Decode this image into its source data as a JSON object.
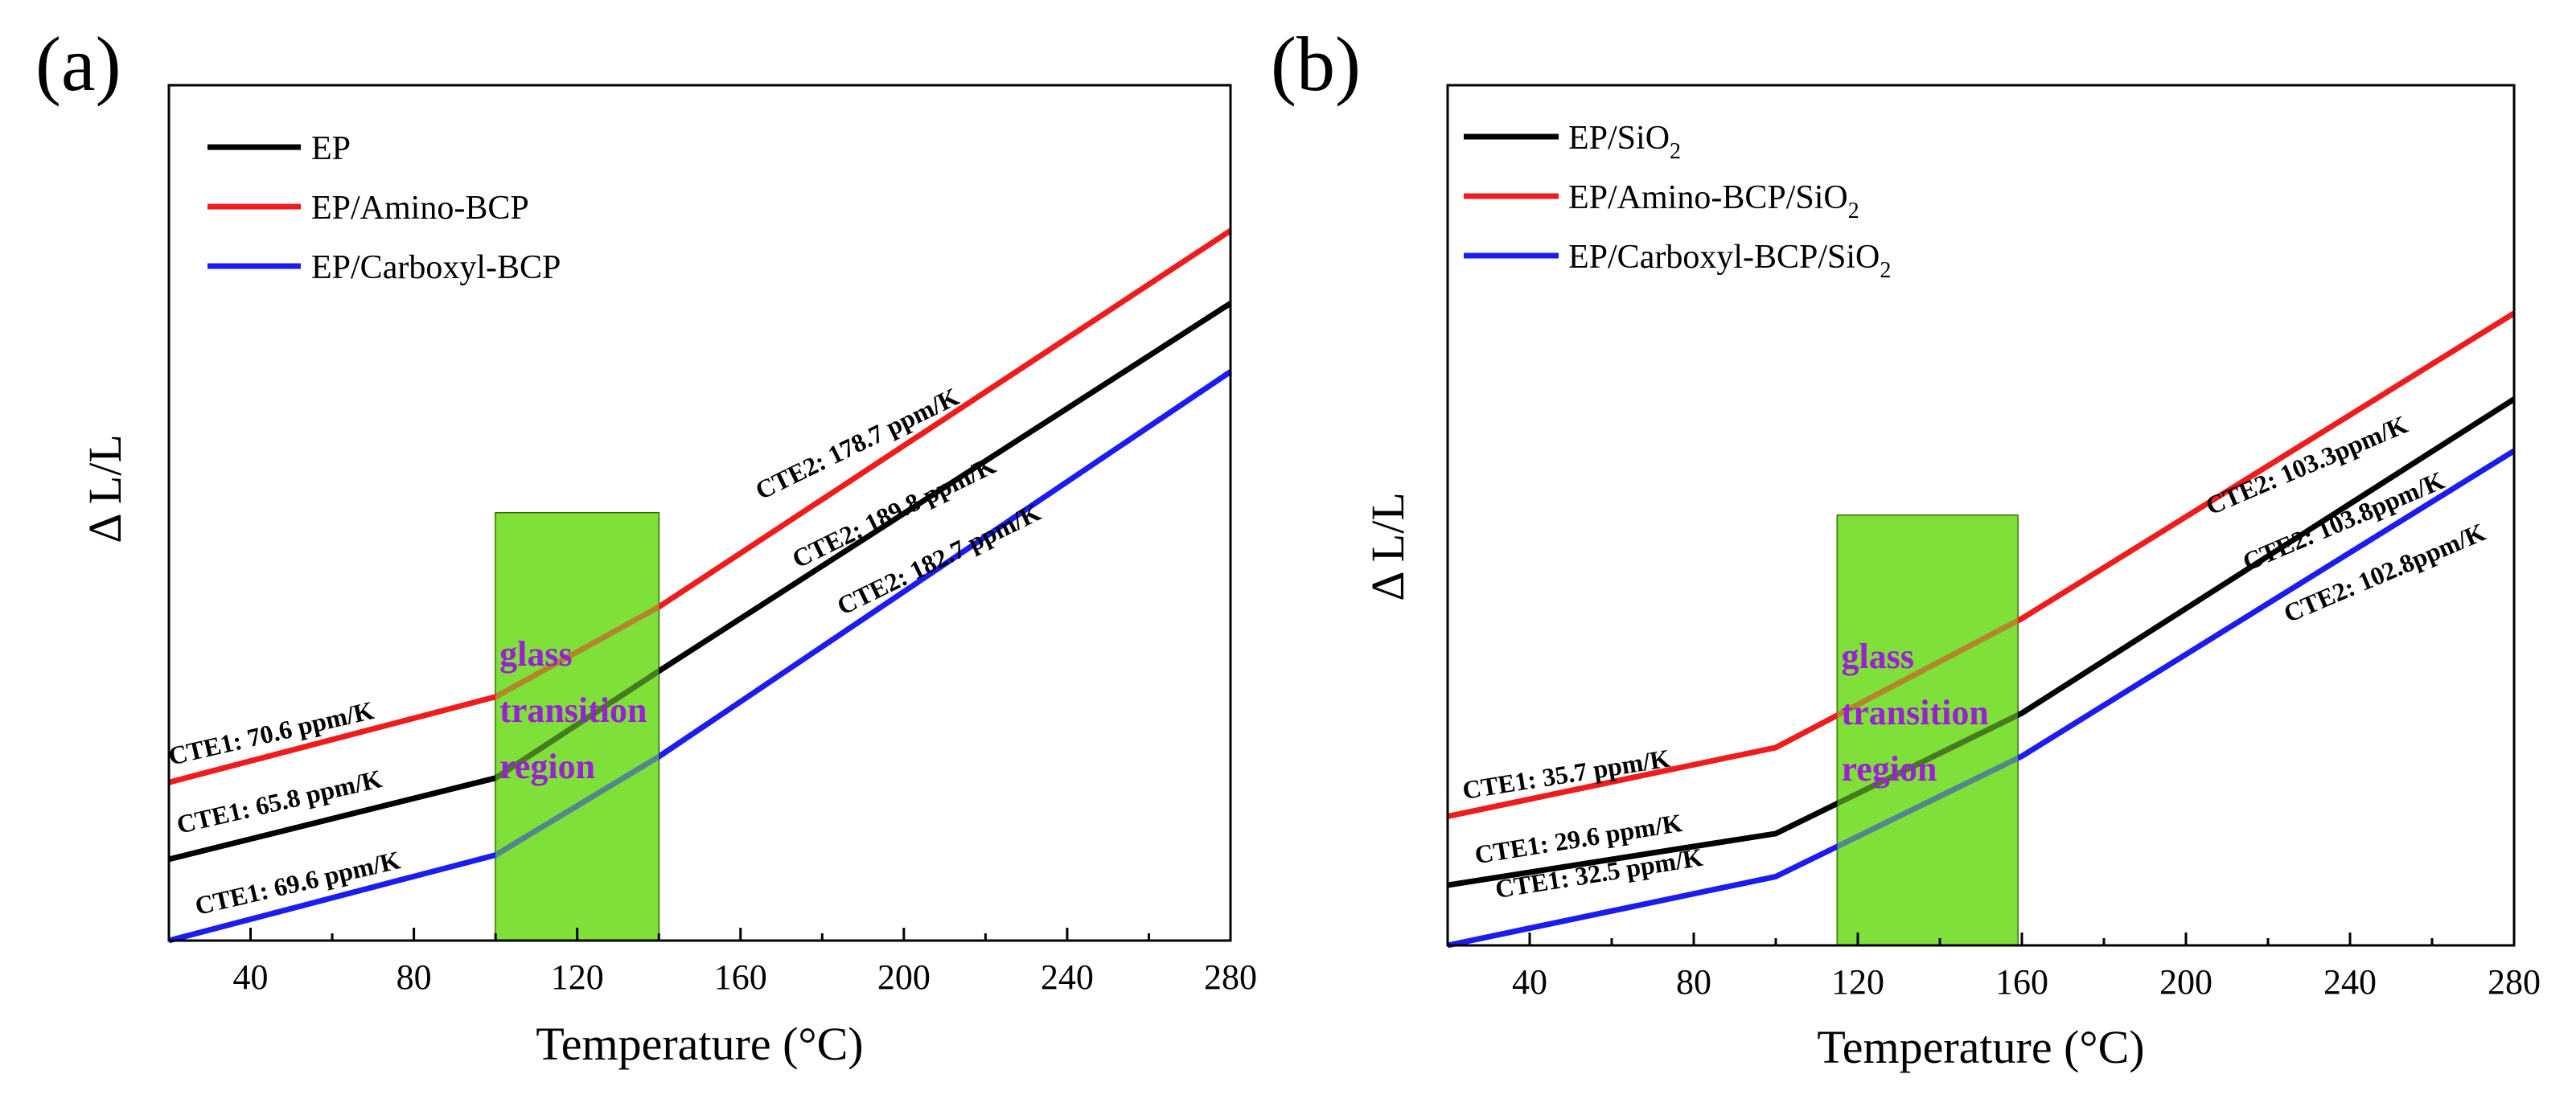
{
  "chart_data": [
    {
      "panel": "(a)",
      "type": "line",
      "xlabel": "Temperature (°C)",
      "ylabel": "Δ L/L",
      "xlim": [
        20,
        280
      ],
      "ylim": [
        0,
        100
      ],
      "xticks": [
        "40",
        "80",
        "120",
        "160",
        "200",
        "240",
        "280"
      ],
      "legend_position": "top-left",
      "region": {
        "x0": 100,
        "x1": 140,
        "label": [
          "glass",
          "transition",
          "region"
        ]
      },
      "series": [
        {
          "name": "EP",
          "legend_main": "EP",
          "legend_sub": "",
          "color": "#000000",
          "x": [
            20,
            100,
            140,
            280
          ],
          "y": [
            9.5,
            19.0,
            31.5,
            74.5
          ]
        },
        {
          "name": "EP/Amino-BCP",
          "legend_main": "EP/Amino-BCP",
          "legend_sub": "",
          "color": "#ee1c1c",
          "x": [
            20,
            100,
            140,
            280
          ],
          "y": [
            18.5,
            28.5,
            39.0,
            83.0
          ]
        },
        {
          "name": "EP/Carboxyl-BCP",
          "legend_main": "EP/Carboxyl-BCP",
          "legend_sub": "",
          "color": "#1c1cee",
          "x": [
            20,
            100,
            140,
            280
          ],
          "y": [
            0.0,
            10.0,
            21.5,
            66.5
          ]
        }
      ],
      "annotations": [
        {
          "text": "CTE1: 70.6 ppm/K",
          "x": 20.5,
          "y": 20.5,
          "angle": -13
        },
        {
          "text": "CTE1: 65.8 ppm/K",
          "x": 22.5,
          "y": 12.5,
          "angle": -13
        },
        {
          "text": "CTE1: 69.6 ppm/K",
          "x": 27,
          "y": 3.0,
          "angle": -13
        },
        {
          "text": "CTE2: 178.7 ppm/K",
          "x": 165,
          "y": 51.5,
          "angle": -26
        },
        {
          "text": "CTE2: 189.8 ppm/K",
          "x": 174,
          "y": 43.5,
          "angle": -26
        },
        {
          "text": "CTE2: 182.7 ppm/K",
          "x": 185,
          "y": 38.0,
          "angle": -26
        }
      ]
    },
    {
      "panel": "(b)",
      "type": "line",
      "xlabel": "Temperature (°C)",
      "ylabel": "Δ L/L",
      "xlim": [
        20,
        280
      ],
      "ylim": [
        0,
        100
      ],
      "xticks": [
        "40",
        "80",
        "120",
        "160",
        "200",
        "240",
        "280"
      ],
      "legend_position": "top-left",
      "region": {
        "x0": 115,
        "x1": 159,
        "label": [
          "glass",
          "transition",
          "region"
        ]
      },
      "series": [
        {
          "name": "EP/SiO2",
          "legend_main": "EP/SiO",
          "legend_sub": "2",
          "color": "#000000",
          "x": [
            20,
            100,
            160,
            280
          ],
          "y": [
            7.0,
            13.0,
            27.0,
            63.5
          ]
        },
        {
          "name": "EP/Amino-BCP/SiO2",
          "legend_main": "EP/Amino-BCP/SiO",
          "legend_sub": "2",
          "color": "#ee1c1c",
          "x": [
            20,
            100,
            160,
            280
          ],
          "y": [
            15.0,
            23.0,
            38.0,
            73.5
          ]
        },
        {
          "name": "EP/Carboxyl-BCP/SiO2",
          "legend_main": "EP/Carboxyl-BCP/SiO",
          "legend_sub": "2",
          "color": "#1c1cee",
          "x": [
            20,
            100,
            160,
            280
          ],
          "y": [
            0.0,
            8.0,
            22.0,
            57.5
          ]
        }
      ],
      "annotations": [
        {
          "text": "CTE1: 35.7 ppm/K",
          "x": 24,
          "y": 17.0,
          "angle": -9
        },
        {
          "text": "CTE1: 29.6 ppm/K",
          "x": 27,
          "y": 9.5,
          "angle": -9
        },
        {
          "text": "CTE1: 32.5 ppm/K",
          "x": 32,
          "y": 5.5,
          "angle": -9
        },
        {
          "text": "CTE2: 103.3ppm/K",
          "x": 206,
          "y": 50.0,
          "angle": -23
        },
        {
          "text": "CTE2: 103.8ppm/K",
          "x": 215,
          "y": 43.5,
          "angle": -23
        },
        {
          "text": "CTE2: 102.8ppm/K",
          "x": 225,
          "y": 37.5,
          "angle": -23
        }
      ]
    }
  ]
}
